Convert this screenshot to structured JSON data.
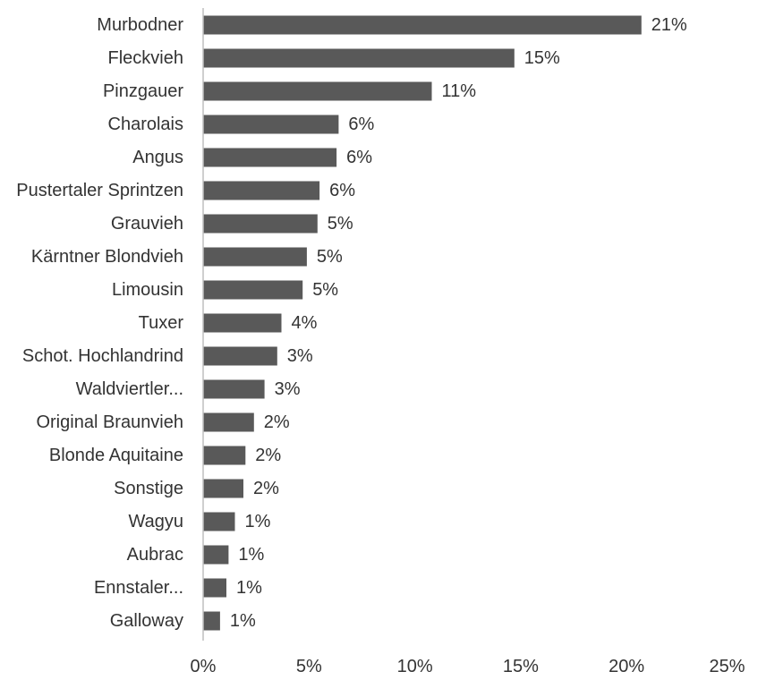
{
  "chart_data": {
    "type": "bar",
    "orientation": "horizontal",
    "title": "",
    "xlabel": "",
    "ylabel": "",
    "categories": [
      "Murbodner",
      "Fleckvieh",
      "Pinzgauer",
      "Charolais",
      "Angus",
      "Pustertaler Sprintzen",
      "Grauvieh",
      "Kärntner Blondvieh",
      "Limousin",
      "Tuxer",
      "Schot. Hochlandrind",
      "Waldviertler...",
      "Original Braunvieh",
      "Blonde Aquitaine",
      "Sonstige",
      "Wagyu",
      "Aubrac",
      "Ennstaler...",
      "Galloway"
    ],
    "values": [
      20.7,
      14.7,
      10.8,
      6.4,
      6.3,
      5.5,
      5.4,
      4.9,
      4.7,
      3.7,
      3.5,
      2.9,
      2.4,
      2.0,
      1.9,
      1.5,
      1.2,
      1.1,
      0.8
    ],
    "value_labels": [
      "21%",
      "15%",
      "11%",
      "6%",
      "6%",
      "6%",
      "5%",
      "5%",
      "5%",
      "4%",
      "3%",
      "3%",
      "2%",
      "2%",
      "2%",
      "1%",
      "1%",
      "1%",
      "1%"
    ],
    "xlim": [
      0,
      25
    ],
    "x_ticks": [
      0,
      5,
      10,
      15,
      20,
      25
    ],
    "x_tick_labels": [
      "0%",
      "5%",
      "10%",
      "15%",
      "20%",
      "25%"
    ],
    "grid": false,
    "legend": "none",
    "bar_color": "#595959",
    "axis_color": "#bfbfbf"
  }
}
